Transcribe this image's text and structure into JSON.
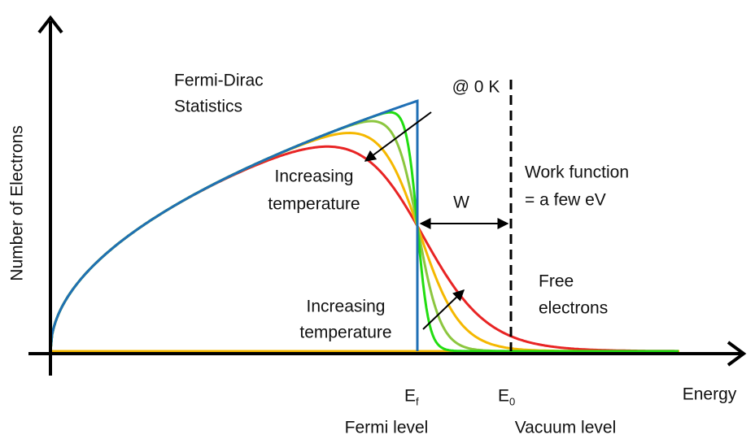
{
  "axes": {
    "y_label": "Number of Electrons",
    "x_label": "Energy"
  },
  "curve_label": [
    "Fermi-Dirac",
    "Statistics"
  ],
  "zero_kelvin": "@ 0 K",
  "upper_note": [
    "Increasing",
    "temperature"
  ],
  "lower_note": [
    "Increasing",
    "temperature"
  ],
  "gap": "W",
  "work_function": [
    "Work function",
    "= a few eV"
  ],
  "free": [
    "Free",
    "electrons"
  ],
  "fermi": {
    "symbol": "E",
    "subscript": "f",
    "name": "Fermi level"
  },
  "vacuum": {
    "symbol": "E",
    "subscript": "0",
    "name": "Vacuum level"
  }
}
